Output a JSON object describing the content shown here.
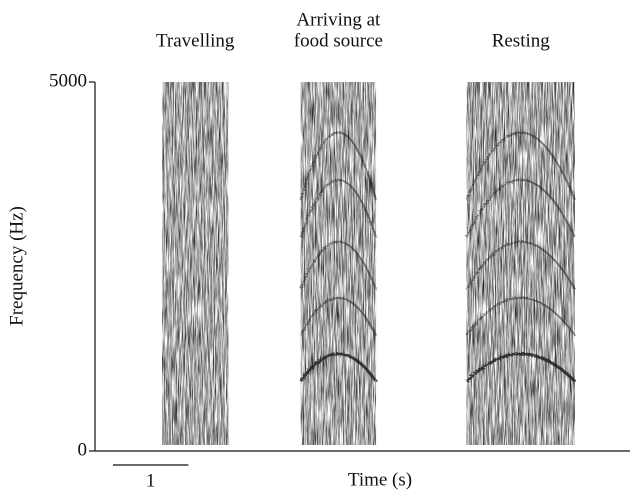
{
  "chart_data": {
    "type": "spectrogram",
    "ylabel": "Frequency (Hz)",
    "xlabel": "Time (s)",
    "ylim": [
      0,
      5000
    ],
    "yticks": [
      0,
      5000
    ],
    "xlim": [
      0,
      7.1
    ],
    "scale_bar": 1,
    "segments": [
      {
        "label": [
          "Travelling"
        ],
        "start": 0.89,
        "end": 1.77
      },
      {
        "label": [
          "Arriving at",
          "food source"
        ],
        "start": 2.73,
        "end": 3.73
      },
      {
        "label": [
          "Resting"
        ],
        "start": 4.93,
        "end": 6.37
      }
    ]
  }
}
